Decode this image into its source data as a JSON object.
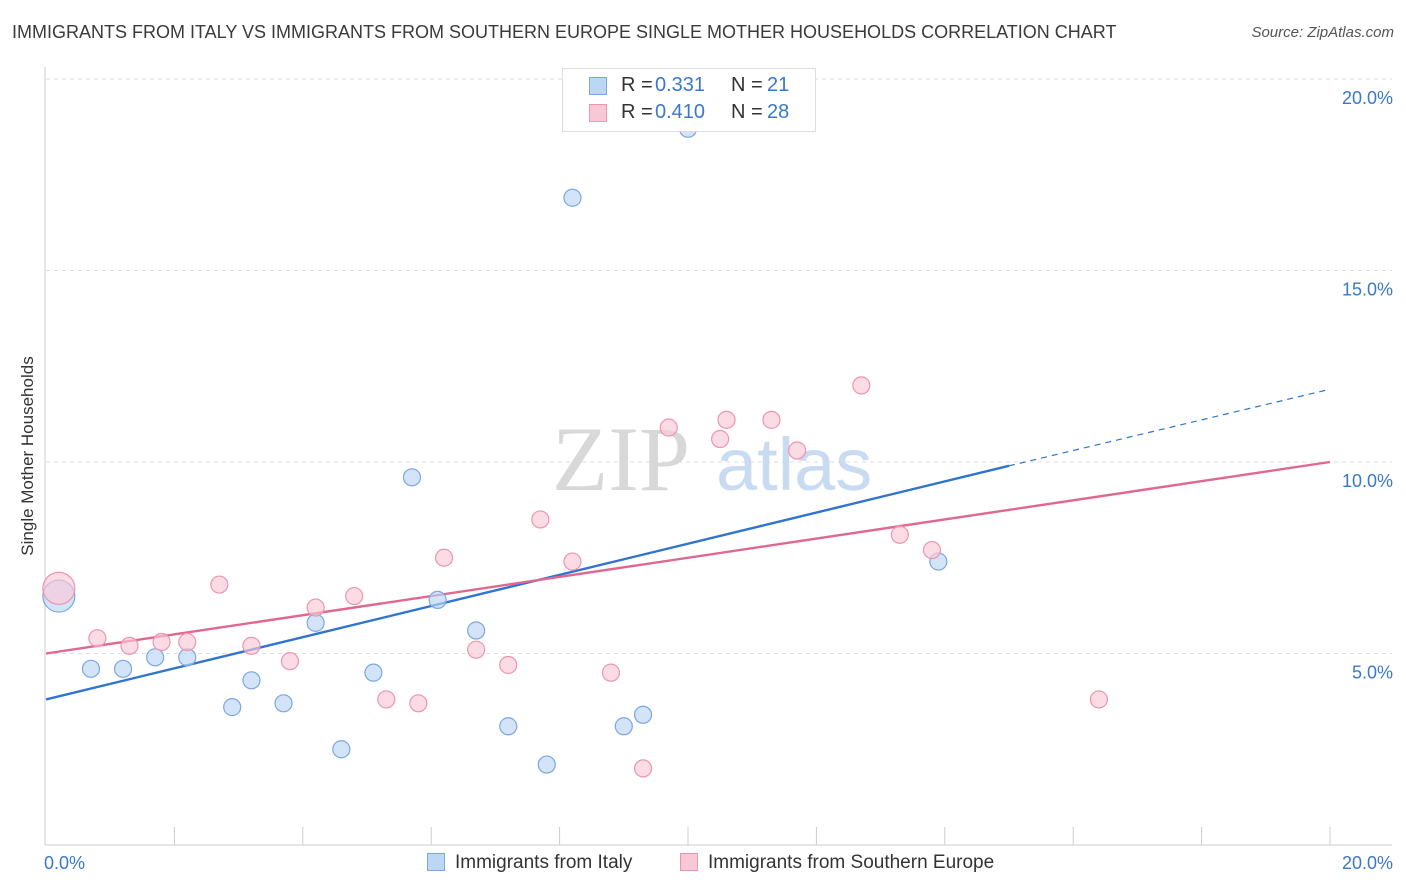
{
  "title": "IMMIGRANTS FROM ITALY VS IMMIGRANTS FROM SOUTHERN EUROPE SINGLE MOTHER HOUSEHOLDS CORRELATION CHART",
  "source": "Source: ZipAtlas.com",
  "watermark": {
    "zip": "ZIP",
    "atlas": "atlas"
  },
  "colors": {
    "italy_fill": "#bcd6f5",
    "italy_stroke": "#7aa7e0",
    "italy_line": "#2f74d0",
    "se_fill": "#f9c8d6",
    "se_stroke": "#ee94b0",
    "se_line": "#e0688f",
    "tick_text": "#3a78c9",
    "grid": "#dddddd"
  },
  "legend": {
    "italy": {
      "r_label": "R =",
      "r_value": "0.331",
      "n_label": "N =",
      "n_value": "21"
    },
    "se": {
      "r_label": "R =",
      "r_value": "0.410",
      "n_label": "N =",
      "n_value": "28"
    }
  },
  "bottom_legend": {
    "italy": "Immigrants from Italy",
    "se": "Immigrants from Southern Europe"
  },
  "chart_data": {
    "type": "scatter",
    "title": "IMMIGRANTS FROM ITALY VS IMMIGRANTS FROM SOUTHERN EUROPE SINGLE MOTHER HOUSEHOLDS CORRELATION CHART",
    "xlabel": "",
    "ylabel": "Single Mother Households",
    "xlim": [
      0,
      20
    ],
    "ylim": [
      0,
      20
    ],
    "x_tick_labels": {
      "left": "0.0%",
      "right": "20.0%"
    },
    "y_ticks": [
      {
        "value": 5,
        "label": "5.0%"
      },
      {
        "value": 10,
        "label": "10.0%"
      },
      {
        "value": 15,
        "label": "15.0%"
      },
      {
        "value": 20,
        "label": "20.0%"
      }
    ],
    "series": [
      {
        "name": "Immigrants from Italy",
        "points": [
          {
            "x": 0.2,
            "y": 6.5,
            "size": "large"
          },
          {
            "x": 0.7,
            "y": 4.6
          },
          {
            "x": 1.2,
            "y": 4.6
          },
          {
            "x": 1.7,
            "y": 4.9
          },
          {
            "x": 2.2,
            "y": 4.9
          },
          {
            "x": 2.9,
            "y": 3.6
          },
          {
            "x": 3.2,
            "y": 4.3
          },
          {
            "x": 3.7,
            "y": 3.7
          },
          {
            "x": 4.2,
            "y": 5.8
          },
          {
            "x": 4.6,
            "y": 2.5
          },
          {
            "x": 5.1,
            "y": 4.5
          },
          {
            "x": 5.7,
            "y": 9.6
          },
          {
            "x": 6.1,
            "y": 6.4
          },
          {
            "x": 6.7,
            "y": 5.6
          },
          {
            "x": 7.2,
            "y": 3.1
          },
          {
            "x": 7.8,
            "y": 2.1
          },
          {
            "x": 8.2,
            "y": 16.9
          },
          {
            "x": 9.0,
            "y": 3.1
          },
          {
            "x": 9.3,
            "y": 3.4
          },
          {
            "x": 10.0,
            "y": 18.7
          },
          {
            "x": 13.9,
            "y": 7.4
          }
        ],
        "trend": {
          "x0": 0,
          "y0": 3.8,
          "x1": 15.0,
          "y1": 9.9,
          "dash_to_x": 20.0,
          "dash_to_y": 11.9
        }
      },
      {
        "name": "Immigrants from Southern Europe",
        "points": [
          {
            "x": 0.2,
            "y": 6.7,
            "size": "large"
          },
          {
            "x": 0.8,
            "y": 5.4
          },
          {
            "x": 1.3,
            "y": 5.2
          },
          {
            "x": 1.8,
            "y": 5.3
          },
          {
            "x": 2.2,
            "y": 5.3
          },
          {
            "x": 2.7,
            "y": 6.8
          },
          {
            "x": 3.2,
            "y": 5.2
          },
          {
            "x": 3.8,
            "y": 4.8
          },
          {
            "x": 4.2,
            "y": 6.2
          },
          {
            "x": 4.8,
            "y": 6.5
          },
          {
            "x": 5.3,
            "y": 3.8
          },
          {
            "x": 5.8,
            "y": 3.7
          },
          {
            "x": 6.2,
            "y": 7.5
          },
          {
            "x": 6.7,
            "y": 5.1
          },
          {
            "x": 7.2,
            "y": 4.7
          },
          {
            "x": 7.7,
            "y": 8.5
          },
          {
            "x": 8.2,
            "y": 7.4
          },
          {
            "x": 8.8,
            "y": 4.5
          },
          {
            "x": 9.3,
            "y": 2.0
          },
          {
            "x": 9.7,
            "y": 10.9
          },
          {
            "x": 10.5,
            "y": 10.6
          },
          {
            "x": 10.6,
            "y": 11.1
          },
          {
            "x": 11.3,
            "y": 11.1
          },
          {
            "x": 11.7,
            "y": 10.3
          },
          {
            "x": 12.7,
            "y": 12.0
          },
          {
            "x": 13.3,
            "y": 8.1
          },
          {
            "x": 13.8,
            "y": 7.7
          },
          {
            "x": 16.4,
            "y": 3.8
          }
        ],
        "trend": {
          "x0": 0,
          "y0": 5.0,
          "x1": 20.0,
          "y1": 10.0
        }
      }
    ]
  }
}
